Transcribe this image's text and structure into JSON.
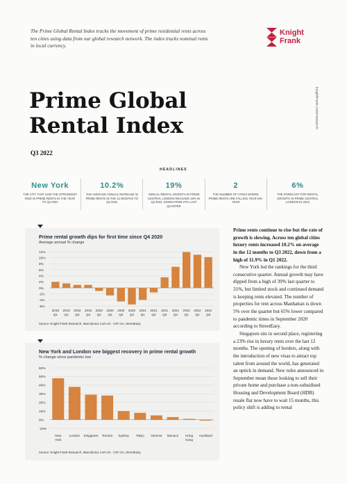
{
  "intro": "The Prime Global Rental Index tracks the movement of prime residential rents across ten cities using data from our global research network. The index tracks nominal rents in local currency.",
  "logo": {
    "line1": "Knight",
    "line2": "Frank"
  },
  "side_url": "knightfrank.com/research",
  "title": {
    "line1": "Prime Global",
    "line2": "Rental Index"
  },
  "subtitle": "Q3 2022",
  "headlines": {
    "heading": "HEADLINES",
    "items": [
      {
        "value": "New York",
        "desc": "The city that saw the strongest rise in prime rents in the year to Q3 2022"
      },
      {
        "value": "10.2%",
        "desc": "The average annual increase in prime rents in the 12 months to Q3 2022"
      },
      {
        "value": "19%",
        "desc": "Annual rental growth in prime central London reached 19% in Q3 2022, down from 27% last quarter"
      },
      {
        "value": "2",
        "desc": "The number of cities where prime rents are falling year-on-year"
      },
      {
        "value": "6%",
        "desc": "The forecast for rental growth in prime central London in 2023"
      }
    ]
  },
  "charts": [
    {
      "title": "Prime rental growth dips for first time since Q4 2020",
      "subtitle": "Average annual % change",
      "source": "Source: Knight Frank Research, Macrobond, IAZI AG - CIFI SA, StreetEasy"
    },
    {
      "title": "New York and London see biggest recovery in prime rental growth",
      "subtitle": "% change since pandemic low",
      "source": "Source: Knight Frank Research, Macrobond, IAZI AG - CIFI SA, StreetEasy"
    }
  ],
  "chart_data": [
    {
      "type": "bar",
      "title": "Prime rental growth dips for first time since Q4 2020",
      "ylabel": "Average annual % change",
      "categories": [
        [
          "2019",
          "Q1"
        ],
        [
          "2019",
          "Q2"
        ],
        [
          "2019",
          "Q3"
        ],
        [
          "2019",
          "Q4"
        ],
        [
          "2020",
          "Q1"
        ],
        [
          "2020",
          "Q2"
        ],
        [
          "2020",
          "Q3"
        ],
        [
          "2020",
          "Q4"
        ],
        [
          "2021",
          "Q1"
        ],
        [
          "2021",
          "Q2"
        ],
        [
          "2021",
          "Q3"
        ],
        [
          "2021",
          "Q4"
        ],
        [
          "2022",
          "Q1"
        ],
        [
          "2022",
          "Q2"
        ],
        [
          "2022",
          "Q3"
        ]
      ],
      "values": [
        2,
        1.5,
        1,
        1,
        -1,
        -2.5,
        -4.5,
        -5.5,
        -4,
        -1.5,
        3.5,
        7,
        11.9,
        11,
        10.2
      ],
      "yticks": [
        "12%",
        "10%",
        "8%",
        "6%",
        "4%",
        "2%",
        "0%",
        "-2%",
        "-4%",
        "-6%"
      ],
      "ylim": [
        -6,
        12
      ],
      "color": "#d6843f"
    },
    {
      "type": "bar",
      "title": "New York and London see biggest recovery in prime rental growth",
      "ylabel": "% change since pandemic low",
      "categories": [
        [
          "New",
          "York"
        ],
        [
          "London",
          ""
        ],
        [
          "Singapore",
          ""
        ],
        [
          "Toronto",
          ""
        ],
        [
          "Sydney",
          ""
        ],
        [
          "Tokyo",
          ""
        ],
        [
          "Geneva",
          ""
        ],
        [
          "Monaco",
          ""
        ],
        [
          "Hong",
          "Kong"
        ],
        [
          "Auckland",
          ""
        ]
      ],
      "values": [
        48,
        38,
        29,
        28,
        10,
        8,
        5,
        3,
        1,
        -1
      ],
      "yticks": [
        "60%",
        "50%",
        "40%",
        "30%",
        "20%",
        "10%",
        "0%",
        "-10%"
      ],
      "ylim": [
        -10,
        60
      ],
      "color": "#d6843f"
    }
  ],
  "body": {
    "lead": "Prime rents continue to rise but the rate of growth is slowing. Across ten global cities luxury rents increased 10.2% on average in the 12 months to Q3 2022, down from a high of 11.9% in Q1 2022.",
    "p1": "New York led the rankings for the third consecutive quarter. Annual growth may have dipped from a high of 39% last quarter to 31%, but limited stock and continued demand is keeping rents elevated. The number of properties for rent across Manhattan is down 5% over the quarter but 65% lower compared to pandemic times in September 2020 according to StreetEasy.",
    "p2": "Singapore sits in second place, registering a 23% rise in luxury rents over the last 12 months. The opening of borders, along with the introduction of new visas to attract top talent from around the world, has generated an uptick in demand. New rules announced in September mean those looking to sell their private home and purchase a non-subsidised Housing and Development Board (HDB) resale flat now have to wait 15 months, this policy shift is adding to rental"
  }
}
